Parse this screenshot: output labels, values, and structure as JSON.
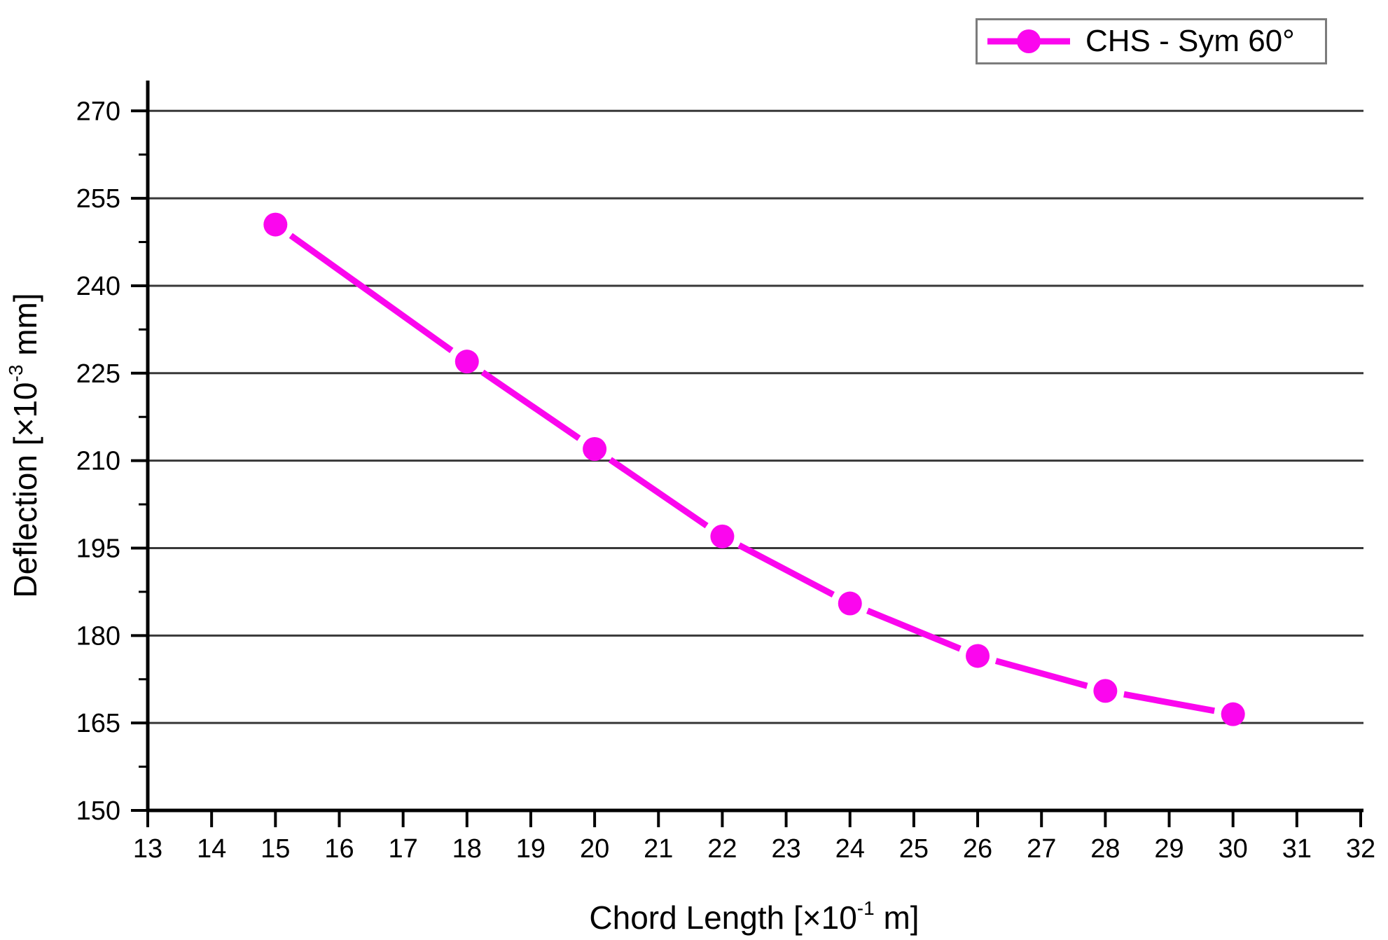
{
  "chart_data": {
    "type": "line",
    "title": "",
    "xlabel": {
      "pre": "Chord Length [×10",
      "sup": "-1",
      "post": " m]"
    },
    "ylabel": {
      "pre": "Deflection [×10",
      "sup": "-3",
      "post": " mm]"
    },
    "series": [
      {
        "name": "CHS - Sym 60°",
        "color": "#fb06ee",
        "marker": "circle",
        "x": [
          15,
          18,
          20,
          22,
          24,
          26,
          28,
          30
        ],
        "y": [
          250.5,
          227,
          212,
          197,
          185.5,
          176.5,
          170.5,
          166.5
        ]
      }
    ],
    "xlim": [
      13,
      32
    ],
    "ylim": [
      150,
      275.2
    ],
    "x_ticks": [
      13,
      14,
      15,
      16,
      17,
      18,
      19,
      20,
      21,
      22,
      23,
      24,
      25,
      26,
      27,
      28,
      29,
      30,
      31,
      32
    ],
    "y_major_ticks": [
      150,
      165,
      180,
      195,
      210,
      225,
      240,
      255,
      270
    ],
    "y_minor_ticks": [
      157.5,
      172.5,
      187.5,
      202.5,
      217.5,
      232.5,
      247.5,
      262.5
    ],
    "grid_values": [
      165,
      180,
      195,
      210,
      225,
      240,
      255,
      270
    ],
    "grid_on": true,
    "grid_color": "#383838",
    "axis_color": "#000000",
    "tick_label_color": "#000000",
    "legend": {
      "position": "top-right",
      "border_color": "#7c7c7c",
      "background": "#ffffff"
    }
  }
}
